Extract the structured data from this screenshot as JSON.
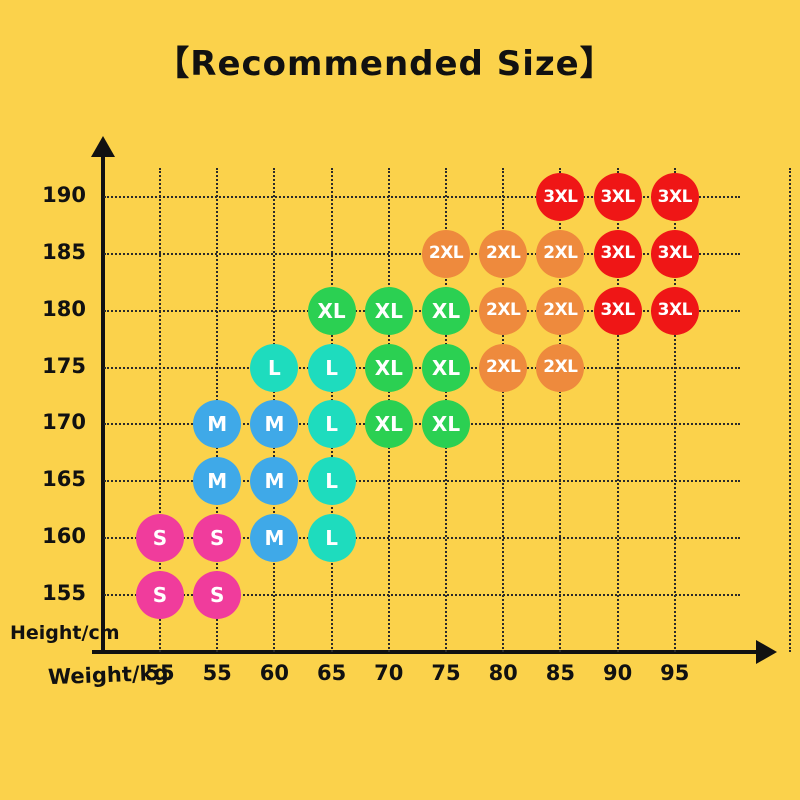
{
  "page": {
    "background_color": "#FBD24B",
    "text_color": "#111111"
  },
  "chart_data": {
    "type": "scatter",
    "title": "【Recommended Size】",
    "xlabel": "Weight/kg",
    "ylabel": "Height/cm",
    "x_tick_labels": [
      "55",
      "55",
      "60",
      "65",
      "70",
      "75",
      "80",
      "85",
      "90",
      "95"
    ],
    "y_tick_labels": [
      "190",
      "185",
      "180",
      "175",
      "170",
      "165",
      "160",
      "155"
    ],
    "y_values": [
      190,
      185,
      180,
      175,
      170,
      165,
      160,
      155
    ],
    "grid": true,
    "legend": "none",
    "size_colors": {
      "S": "#F03C9C",
      "M": "#3FA9E8",
      "L": "#1EDCBE",
      "XL": "#2BD052",
      "2XL": "#EE8A3D",
      "3XL": "#EF1616"
    },
    "point_label_color": "#ffffff",
    "points": [
      {
        "height": 155,
        "col": 0,
        "size": "S"
      },
      {
        "height": 155,
        "col": 1,
        "size": "S"
      },
      {
        "height": 160,
        "col": 0,
        "size": "S"
      },
      {
        "height": 160,
        "col": 1,
        "size": "S"
      },
      {
        "height": 160,
        "col": 2,
        "size": "M"
      },
      {
        "height": 160,
        "col": 3,
        "size": "L"
      },
      {
        "height": 165,
        "col": 1,
        "size": "M"
      },
      {
        "height": 165,
        "col": 2,
        "size": "M"
      },
      {
        "height": 165,
        "col": 3,
        "size": "L"
      },
      {
        "height": 170,
        "col": 1,
        "size": "M"
      },
      {
        "height": 170,
        "col": 2,
        "size": "M"
      },
      {
        "height": 170,
        "col": 3,
        "size": "L"
      },
      {
        "height": 170,
        "col": 4,
        "size": "XL"
      },
      {
        "height": 170,
        "col": 5,
        "size": "XL"
      },
      {
        "height": 175,
        "col": 2,
        "size": "L"
      },
      {
        "height": 175,
        "col": 3,
        "size": "L"
      },
      {
        "height": 175,
        "col": 4,
        "size": "XL"
      },
      {
        "height": 175,
        "col": 5,
        "size": "XL"
      },
      {
        "height": 175,
        "col": 6,
        "size": "2XL"
      },
      {
        "height": 175,
        "col": 7,
        "size": "2XL"
      },
      {
        "height": 180,
        "col": 3,
        "size": "XL"
      },
      {
        "height": 180,
        "col": 4,
        "size": "XL"
      },
      {
        "height": 180,
        "col": 5,
        "size": "XL"
      },
      {
        "height": 180,
        "col": 6,
        "size": "2XL"
      },
      {
        "height": 180,
        "col": 7,
        "size": "2XL"
      },
      {
        "height": 180,
        "col": 8,
        "size": "3XL"
      },
      {
        "height": 180,
        "col": 9,
        "size": "3XL"
      },
      {
        "height": 185,
        "col": 5,
        "size": "2XL"
      },
      {
        "height": 185,
        "col": 6,
        "size": "2XL"
      },
      {
        "height": 185,
        "col": 7,
        "size": "2XL"
      },
      {
        "height": 185,
        "col": 8,
        "size": "3XL"
      },
      {
        "height": 185,
        "col": 9,
        "size": "3XL"
      },
      {
        "height": 190,
        "col": 7,
        "size": "3XL"
      },
      {
        "height": 190,
        "col": 8,
        "size": "3XL"
      },
      {
        "height": 190,
        "col": 9,
        "size": "3XL"
      }
    ]
  }
}
